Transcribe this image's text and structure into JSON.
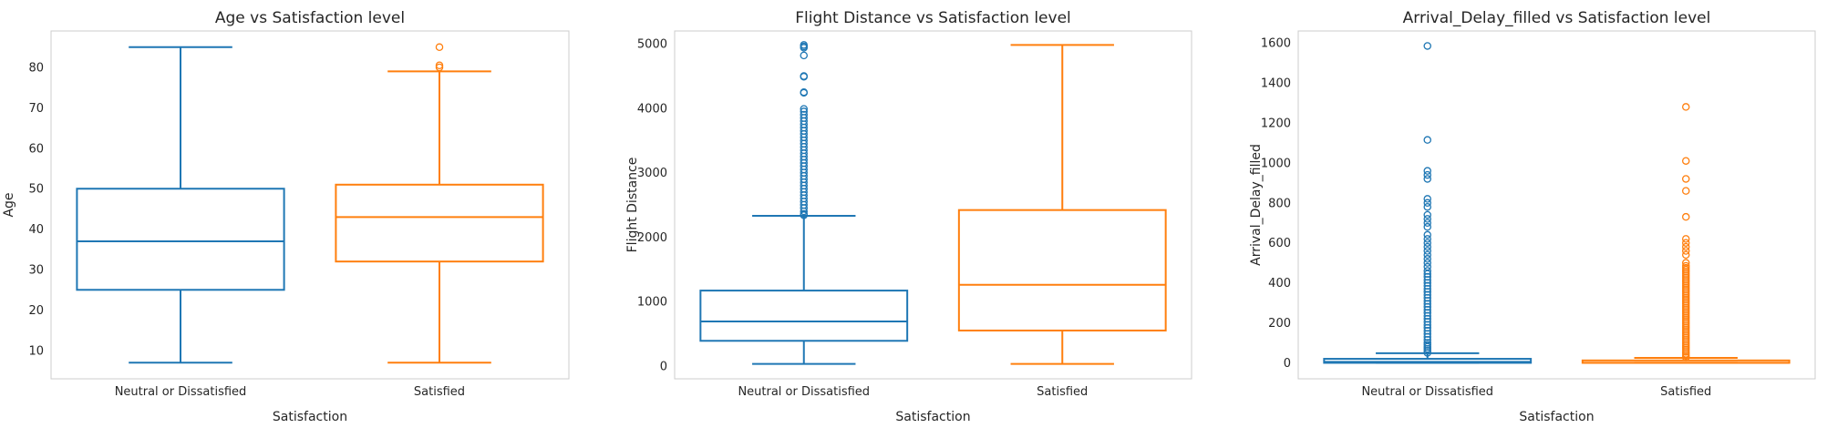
{
  "colors": {
    "neutral": "#1f77b4",
    "satisfied": "#ff7f0e",
    "frame": "#cccccc",
    "text": "#262626"
  },
  "chart_data": [
    {
      "type": "box",
      "title": "Age vs Satisfaction level",
      "xlabel": "Satisfaction",
      "ylabel": "Age",
      "categories": [
        "Neutral or Dissatisfied",
        "Satisfied"
      ],
      "ylim": [
        3,
        89
      ],
      "yticks": [
        10,
        20,
        30,
        40,
        50,
        60,
        70,
        80
      ],
      "grid": false,
      "boxes": [
        {
          "whisker_low": 7,
          "q1": 25,
          "median": 37,
          "q3": 50,
          "whisker_high": 85,
          "outliers": []
        },
        {
          "whisker_low": 7,
          "q1": 32,
          "median": 43,
          "q3": 51,
          "whisker_high": 79,
          "outliers": [
            80,
            80.5,
            85
          ]
        }
      ]
    },
    {
      "type": "box",
      "title": "Flight Distance vs Satisfaction level",
      "xlabel": "Satisfaction",
      "ylabel": "Flight Distance",
      "categories": [
        "Neutral or Dissatisfied",
        "Satisfied"
      ],
      "ylim": [
        -200,
        5200
      ],
      "yticks": [
        0,
        1000,
        2000,
        3000,
        4000,
        5000
      ],
      "grid": false,
      "boxes": [
        {
          "whisker_low": 31,
          "q1": 390,
          "median": 690,
          "q3": 1170,
          "whisker_high": 2330,
          "outliers": [
            2340,
            2360,
            2400,
            2450,
            2500,
            2550,
            2600,
            2650,
            2700,
            2750,
            2800,
            2850,
            2900,
            2950,
            3000,
            3050,
            3100,
            3150,
            3200,
            3250,
            3300,
            3350,
            3400,
            3450,
            3500,
            3550,
            3600,
            3650,
            3700,
            3750,
            3800,
            3850,
            3900,
            3950,
            3990,
            4240,
            4250,
            4490,
            4500,
            4820,
            4940,
            4960,
            4983
          ]
        },
        {
          "whisker_low": 31,
          "q1": 550,
          "median": 1260,
          "q3": 2420,
          "whisker_high": 4983,
          "outliers": []
        }
      ]
    },
    {
      "type": "box",
      "title": "Arrival_Delay_filled vs Satisfaction level",
      "xlabel": "Satisfaction",
      "ylabel": "Arrival_Delay_filled",
      "categories": [
        "Neutral or Dissatisfied",
        "Satisfied"
      ],
      "ylim": [
        -80,
        1660
      ],
      "yticks": [
        0,
        200,
        400,
        600,
        800,
        1000,
        1200,
        1400,
        1600
      ],
      "grid": false,
      "boxes": [
        {
          "whisker_low": 0,
          "q1": 0,
          "median": 5,
          "q3": 20,
          "whisker_high": 48,
          "outliers": [
            50,
            60,
            70,
            80,
            90,
            100,
            115,
            130,
            145,
            160,
            175,
            190,
            205,
            220,
            235,
            250,
            265,
            280,
            295,
            310,
            325,
            340,
            355,
            370,
            385,
            400,
            415,
            430,
            445,
            460,
            480,
            500,
            520,
            540,
            560,
            580,
            600,
            620,
            640,
            680,
            700,
            720,
            740,
            780,
            800,
            820,
            920,
            940,
            960,
            1115,
            1585
          ]
        },
        {
          "whisker_low": 0,
          "q1": 0,
          "median": 0,
          "q3": 12,
          "whisker_high": 25,
          "outliers": [
            27,
            35,
            45,
            55,
            65,
            75,
            85,
            95,
            105,
            115,
            125,
            135,
            145,
            155,
            165,
            175,
            185,
            195,
            205,
            215,
            225,
            235,
            245,
            255,
            265,
            275,
            285,
            295,
            305,
            315,
            325,
            335,
            345,
            355,
            365,
            375,
            385,
            395,
            405,
            415,
            425,
            435,
            445,
            455,
            465,
            475,
            485,
            500,
            540,
            560,
            580,
            600,
            620,
            730,
            860,
            920,
            1010,
            1280
          ]
        }
      ]
    }
  ]
}
